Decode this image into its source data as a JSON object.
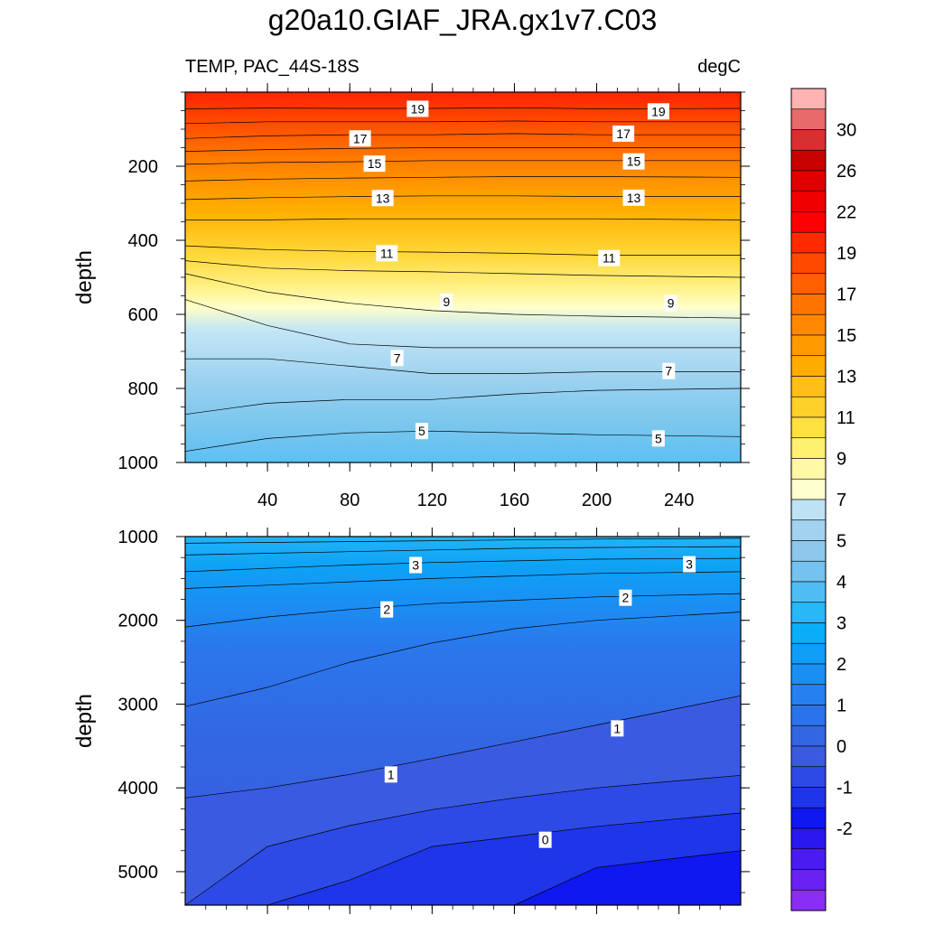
{
  "title": "g20a10.GIAF_JRA.gx1v7.C03",
  "variable_label": "TEMP, PAC_44S-18S",
  "units_label": "degC",
  "colors": {
    "cold_min": "#7b2ff7",
    "blue_deep": "#0a14f0",
    "light_blue": "#b9e0f5",
    "yellow": "#ffe43a",
    "orange": "#ff8c00",
    "red": "#ff1a00"
  },
  "chart_data": [
    {
      "type": "contour",
      "name": "upper-panel",
      "ylabel": "depth",
      "xlabel": "",
      "xlim": [
        0,
        270
      ],
      "ylim": [
        1000,
        0
      ],
      "x_ticks": [
        40,
        80,
        120,
        160,
        200,
        240
      ],
      "y_ticks": [
        200,
        400,
        600,
        800,
        1000
      ],
      "contour_labels": [
        {
          "text": "19",
          "x": 113,
          "y": 45
        },
        {
          "text": "19",
          "x": 230,
          "y": 52
        },
        {
          "text": "17",
          "x": 85,
          "y": 125
        },
        {
          "text": "17",
          "x": 213,
          "y": 112
        },
        {
          "text": "15",
          "x": 92,
          "y": 193
        },
        {
          "text": "15",
          "x": 218,
          "y": 187
        },
        {
          "text": "13",
          "x": 96,
          "y": 286
        },
        {
          "text": "13",
          "x": 218,
          "y": 285
        },
        {
          "text": "11",
          "x": 98,
          "y": 435
        },
        {
          "text": "11",
          "x": 206,
          "y": 448
        },
        {
          "text": "9",
          "x": 127,
          "y": 566
        },
        {
          "text": "9",
          "x": 236,
          "y": 570
        },
        {
          "text": "7",
          "x": 103,
          "y": 718
        },
        {
          "text": "7",
          "x": 235,
          "y": 753
        },
        {
          "text": "5",
          "x": 115,
          "y": 915
        },
        {
          "text": "5",
          "x": 230,
          "y": 935
        }
      ],
      "isolines": [
        {
          "level": 19,
          "depths": [
            45,
            43,
            44,
            44,
            42,
            45,
            44
          ]
        },
        {
          "level": 18,
          "depths": [
            85,
            80,
            80,
            80,
            78,
            80,
            80
          ]
        },
        {
          "level": 17,
          "depths": [
            125,
            118,
            115,
            115,
            112,
            115,
            115
          ]
        },
        {
          "level": 16,
          "depths": [
            160,
            155,
            152,
            150,
            150,
            150,
            150
          ]
        },
        {
          "level": 15,
          "depths": [
            195,
            190,
            188,
            185,
            185,
            185,
            185
          ]
        },
        {
          "level": 14,
          "depths": [
            240,
            235,
            232,
            230,
            228,
            228,
            230
          ]
        },
        {
          "level": 13,
          "depths": [
            290,
            285,
            282,
            280,
            280,
            282,
            282
          ]
        },
        {
          "level": 12,
          "depths": [
            345,
            345,
            342,
            342,
            342,
            342,
            345
          ]
        },
        {
          "level": 11,
          "depths": [
            415,
            425,
            430,
            432,
            435,
            440,
            440
          ]
        },
        {
          "level": 10,
          "depths": [
            455,
            475,
            482,
            485,
            490,
            495,
            500
          ]
        },
        {
          "level": 9,
          "depths": [
            490,
            540,
            570,
            590,
            600,
            605,
            610
          ]
        },
        {
          "level": 8,
          "depths": [
            560,
            630,
            680,
            690,
            690,
            690,
            690
          ]
        },
        {
          "level": 7,
          "depths": [
            720,
            720,
            740,
            760,
            760,
            755,
            755
          ]
        },
        {
          "level": 6,
          "depths": [
            870,
            840,
            830,
            830,
            815,
            805,
            800
          ]
        },
        {
          "level": 5,
          "depths": [
            970,
            935,
            920,
            915,
            920,
            925,
            930
          ]
        }
      ],
      "profile_x": [
        0,
        40,
        80,
        120,
        160,
        200,
        270
      ]
    },
    {
      "type": "contour",
      "name": "lower-panel",
      "ylabel": "depth",
      "xlabel": "",
      "xlim": [
        0,
        270
      ],
      "ylim": [
        5400,
        1000
      ],
      "y_ticks": [
        1000,
        2000,
        3000,
        4000,
        5000
      ],
      "contour_labels": [
        {
          "text": "3",
          "x": 112,
          "y": 1340
        },
        {
          "text": "3",
          "x": 245,
          "y": 1330
        },
        {
          "text": "2",
          "x": 98,
          "y": 1870
        },
        {
          "text": "2",
          "x": 214,
          "y": 1730
        },
        {
          "text": "1",
          "x": 100,
          "y": 3840
        },
        {
          "text": "1",
          "x": 210,
          "y": 3290
        },
        {
          "text": "0",
          "x": 175,
          "y": 4620
        }
      ],
      "isolines": [
        {
          "level": 4,
          "depths": [
            1080,
            1070,
            1060,
            1050,
            1040,
            1030,
            1020
          ]
        },
        {
          "level": 3.5,
          "depths": [
            1220,
            1200,
            1180,
            1160,
            1140,
            1130,
            1120
          ]
        },
        {
          "level": 3,
          "depths": [
            1420,
            1380,
            1340,
            1310,
            1290,
            1270,
            1260
          ]
        },
        {
          "level": 2.5,
          "depths": [
            1620,
            1580,
            1540,
            1500,
            1470,
            1440,
            1420
          ]
        },
        {
          "level": 2,
          "depths": [
            2080,
            1960,
            1870,
            1800,
            1760,
            1720,
            1680
          ]
        },
        {
          "level": 1.5,
          "depths": [
            3030,
            2800,
            2500,
            2270,
            2100,
            2000,
            1900
          ]
        },
        {
          "level": 1,
          "depths": [
            4120,
            4000,
            3840,
            3650,
            3450,
            3250,
            2900
          ]
        },
        {
          "level": 0.5,
          "depths": [
            5400,
            4700,
            4450,
            4260,
            4120,
            4000,
            3850
          ]
        },
        {
          "level": 0,
          "depths": [
            5400,
            5400,
            5100,
            4700,
            4580,
            4460,
            4300
          ]
        },
        {
          "level": -0.5,
          "depths": [
            5400,
            5400,
            5400,
            5400,
            5400,
            4950,
            4750
          ]
        }
      ],
      "profile_x": [
        0,
        40,
        80,
        120,
        160,
        200,
        270
      ]
    }
  ],
  "colorbar": {
    "labels": [
      "30",
      "26",
      "22",
      "19",
      "17",
      "15",
      "13",
      "11",
      "9",
      "7",
      "5",
      "4",
      "3",
      "2",
      "1",
      "0",
      "-1",
      "-2"
    ],
    "colors": [
      "#ffb3b3",
      "#e86a6a",
      "#d83030",
      "#c80000",
      "#e00000",
      "#f00000",
      "#ff0000",
      "#ff2a00",
      "#ff4800",
      "#ff6000",
      "#ff7400",
      "#ff8800",
      "#ff9a00",
      "#ffac00",
      "#ffbe1a",
      "#ffcf2a",
      "#ffe040",
      "#fff070",
      "#fff8a6",
      "#ffffd0",
      "#bde2f4",
      "#a3d2ee",
      "#8cc8eb",
      "#73c2ef",
      "#4fbdf4",
      "#27b8f8",
      "#0aadf8",
      "#0f9ef5",
      "#1a8ff3",
      "#2680f0",
      "#2b73ea",
      "#3366e3",
      "#3a5be0",
      "#2d4ae6",
      "#1f35ea",
      "#0f18f0",
      "#2a18ee",
      "#4a1cf0",
      "#6a22f3",
      "#8a2ef5"
    ]
  }
}
